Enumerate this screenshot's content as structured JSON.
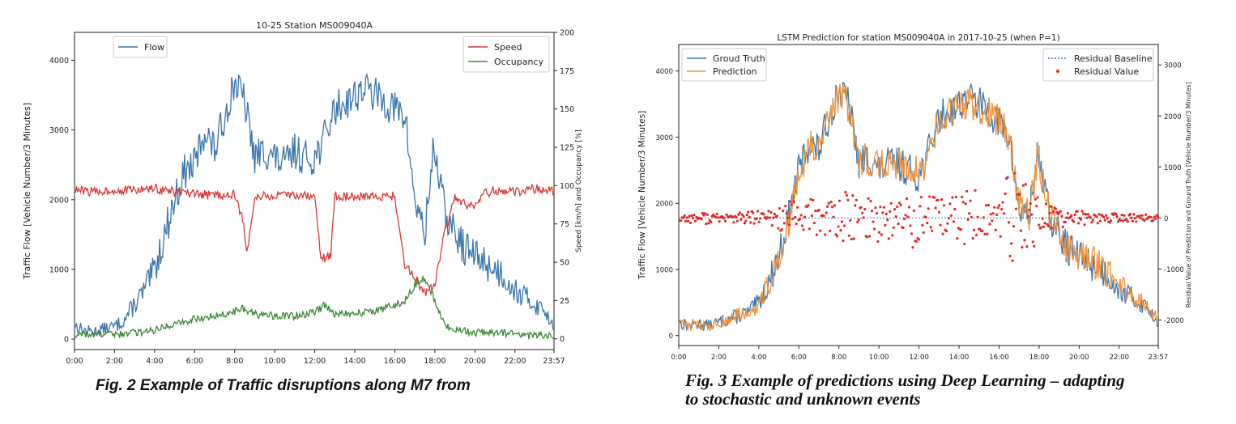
{
  "chart_data": [
    {
      "type": "line",
      "title": "10-25 Station MS009040A",
      "ylabel": "Traffic Flow [Vehicle Number/3 Minutes]",
      "y2label": "Speed [km/h] and Occupancy [%]",
      "xlabel": "",
      "xticks": [
        "0:00",
        "2:00",
        "4:00",
        "6:00",
        "8:00",
        "10:00",
        "12:00",
        "14:00",
        "16:00",
        "18:00",
        "20:00",
        "22:00",
        "23:57"
      ],
      "ylim": [
        -150,
        4400
      ],
      "yticks": [
        0,
        1000,
        2000,
        3000,
        4000
      ],
      "y2lim": [
        -7,
        200
      ],
      "y2ticks": [
        0,
        25,
        50,
        75,
        100,
        125,
        150,
        175,
        200
      ],
      "grid": false,
      "legend_left": {
        "placement": "top-left",
        "entries": [
          "Flow"
        ]
      },
      "legend_right": {
        "placement": "top-right",
        "entries": [
          "Speed",
          "Occupancy"
        ]
      },
      "series": [
        {
          "name": "Flow",
          "axis": "left",
          "color": "#3b76ad",
          "x_hours": [
            0,
            0.5,
            1,
            1.5,
            2,
            2.5,
            3,
            3.5,
            4,
            4.5,
            5,
            5.5,
            6,
            6.5,
            7,
            7.5,
            8,
            8.5,
            9,
            9.5,
            10,
            10.5,
            11,
            11.5,
            12,
            12.5,
            13,
            13.5,
            14,
            14.5,
            15,
            15.5,
            16,
            16.5,
            17,
            17.5,
            17.95,
            18.5,
            19,
            19.5,
            20,
            20.5,
            21,
            21.5,
            22,
            22.5,
            23,
            23.5,
            23.95
          ],
          "values": [
            200,
            120,
            110,
            150,
            180,
            280,
            500,
            700,
            1000,
            1500,
            2000,
            2400,
            2500,
            3000,
            2700,
            3200,
            3700,
            3400,
            2600,
            2700,
            2600,
            2500,
            2700,
            2600,
            2600,
            2900,
            3300,
            3400,
            3500,
            3600,
            3500,
            3400,
            3300,
            3200,
            2000,
            1500,
            2800,
            1800,
            1500,
            1300,
            1200,
            1100,
            1000,
            900,
            700,
            600,
            500,
            400,
            200
          ]
        },
        {
          "name": "Speed",
          "axis": "right",
          "color": "#d93a35",
          "x_hours": [
            0,
            1,
            2,
            3,
            4,
            5,
            6,
            7,
            8,
            8.4,
            8.6,
            9,
            10,
            11,
            12,
            12.3,
            12.8,
            13,
            14,
            15,
            16,
            16.5,
            17,
            17.5,
            18,
            18.5,
            19,
            19.5,
            20,
            20.5,
            21,
            22,
            23,
            23.95
          ],
          "values": [
            97,
            96,
            97,
            97,
            98,
            96,
            94,
            94,
            94,
            78,
            55,
            93,
            93,
            94,
            93,
            52,
            55,
            93,
            93,
            93,
            93,
            48,
            40,
            30,
            35,
            70,
            92,
            88,
            85,
            95,
            97,
            96,
            98,
            96
          ]
        },
        {
          "name": "Occupancy",
          "axis": "right",
          "color": "#3b8a33",
          "x_hours": [
            0,
            1,
            2,
            3,
            4,
            5,
            6,
            7,
            8,
            8.5,
            9,
            10,
            11,
            12,
            12.5,
            13,
            14,
            15,
            16,
            16.5,
            17,
            17.5,
            18,
            18.5,
            19,
            20,
            21,
            22,
            23,
            23.95
          ],
          "values": [
            3,
            3,
            3,
            4,
            6,
            10,
            13,
            15,
            18,
            20,
            16,
            15,
            15,
            17,
            22,
            16,
            17,
            18,
            22,
            25,
            35,
            40,
            25,
            8,
            6,
            4,
            4,
            3,
            2,
            2
          ]
        }
      ]
    },
    {
      "type": "line",
      "title": "LSTM Prediction for station MS009040A in 2017-10-25 (when P=1)",
      "ylabel": "Traffic Flow [Vehicle Number/3 Minutes]",
      "y2label": "Residual Value of Prediction and Ground Truth [Vehicle Number/3 Minutes]",
      "xlabel": "",
      "xticks": [
        "0:00",
        "2:00",
        "4:00",
        "6:00",
        "8:00",
        "10:00",
        "12:00",
        "14:00",
        "16:00",
        "18:00",
        "20:00",
        "22:00",
        "23:57"
      ],
      "ylim": [
        -150,
        4400
      ],
      "yticks": [
        0,
        1000,
        2000,
        3000,
        4000
      ],
      "y2lim": [
        -2500,
        3400
      ],
      "y2ticks": [
        -2000,
        -1000,
        0,
        1000,
        2000,
        3000
      ],
      "grid": false,
      "legend_left": {
        "placement": "top-left",
        "entries": [
          "Groud Truth",
          "Prediction"
        ]
      },
      "legend_right": {
        "placement": "top-right",
        "entries": [
          "Residual Baseline",
          "Residual Value"
        ]
      },
      "series": [
        {
          "name": "Groud Truth",
          "axis": "left",
          "color": "#3b76ad",
          "x_hours": [
            0,
            0.5,
            1,
            1.5,
            2,
            2.5,
            3,
            3.5,
            4,
            4.5,
            5,
            5.5,
            6,
            6.5,
            7,
            7.5,
            8,
            8.5,
            9,
            9.5,
            10,
            10.5,
            11,
            11.5,
            12,
            12.5,
            13,
            13.5,
            14,
            14.5,
            15,
            15.5,
            16,
            16.5,
            17,
            17.5,
            17.95,
            18.5,
            19,
            19.5,
            20,
            20.5,
            21,
            21.5,
            22,
            22.5,
            23,
            23.5,
            23.95
          ],
          "values": [
            200,
            150,
            180,
            150,
            200,
            260,
            300,
            350,
            500,
            800,
            1200,
            1800,
            2500,
            2900,
            2800,
            3300,
            3700,
            3500,
            2600,
            2700,
            2500,
            2600,
            2600,
            2500,
            2400,
            2800,
            3300,
            3400,
            3500,
            3600,
            3500,
            3400,
            3200,
            3000,
            1900,
            1800,
            2800,
            1800,
            1500,
            1300,
            1200,
            1100,
            1000,
            900,
            700,
            600,
            500,
            400,
            200
          ]
        },
        {
          "name": "Prediction",
          "axis": "left",
          "color": "#f0923a",
          "x_hours": [
            0,
            0.5,
            1,
            1.5,
            2,
            2.5,
            3,
            3.5,
            4,
            4.5,
            5,
            5.5,
            6,
            6.5,
            7,
            7.5,
            8,
            8.5,
            9,
            9.5,
            10,
            10.5,
            11,
            11.5,
            12,
            12.5,
            13,
            13.5,
            14,
            14.5,
            15,
            15.5,
            16,
            16.5,
            17,
            17.5,
            17.95,
            18.5,
            19,
            19.5,
            20,
            20.5,
            21,
            21.5,
            22,
            22.5,
            23,
            23.5,
            23.95
          ],
          "values": [
            210,
            160,
            170,
            160,
            190,
            250,
            310,
            340,
            480,
            780,
            1150,
            1750,
            2450,
            2850,
            2850,
            3250,
            3650,
            3450,
            2650,
            2650,
            2550,
            2600,
            2550,
            2550,
            2450,
            2750,
            3250,
            3350,
            3450,
            3550,
            3450,
            3350,
            3250,
            2950,
            2000,
            1850,
            2700,
            1850,
            1550,
            1350,
            1250,
            1150,
            1050,
            950,
            750,
            650,
            550,
            420,
            220
          ]
        },
        {
          "name": "Residual Baseline",
          "axis": "right",
          "color": "#3b76ad",
          "constant": 0
        },
        {
          "name": "Residual Value",
          "axis": "right",
          "color": "#e02a26",
          "kind": "scatter",
          "x_hours": [
            0.2,
            0.8,
            1.4,
            2.0,
            2.6,
            3.2,
            3.8,
            4.4,
            5.0,
            5.4,
            5.8,
            6.2,
            6.6,
            7.0,
            7.4,
            7.8,
            8.2,
            8.6,
            9.0,
            9.4,
            9.8,
            10.2,
            10.6,
            11.0,
            11.4,
            11.8,
            12.2,
            12.6,
            13.0,
            13.4,
            13.8,
            14.2,
            14.6,
            15.0,
            15.4,
            15.8,
            16.2,
            16.6,
            17.0,
            17.3,
            17.6,
            17.9,
            18.2,
            18.6,
            19.0,
            19.6,
            20.2,
            20.8,
            21.4,
            22.0,
            22.6,
            23.2,
            23.8
          ],
          "values": [
            50,
            -30,
            60,
            -20,
            40,
            -60,
            80,
            -100,
            200,
            -250,
            300,
            -200,
            350,
            -400,
            250,
            -300,
            500,
            -450,
            300,
            -350,
            400,
            -500,
            350,
            -300,
            500,
            -600,
            450,
            -400,
            300,
            -350,
            500,
            -450,
            600,
            -500,
            400,
            -300,
            700,
            -800,
            900,
            -1000,
            500,
            -500,
            300,
            -200,
            150,
            -100,
            80,
            -60,
            40,
            -30,
            20,
            -10,
            0
          ]
        }
      ]
    }
  ],
  "captions": {
    "left": "Fig. 2 Example of Traffic disruptions  along M7 from",
    "right_line1": "Fig. 3 Example of predictions  using Deep Learning – adapting",
    "right_line2": "to stochastic and unknown events"
  }
}
